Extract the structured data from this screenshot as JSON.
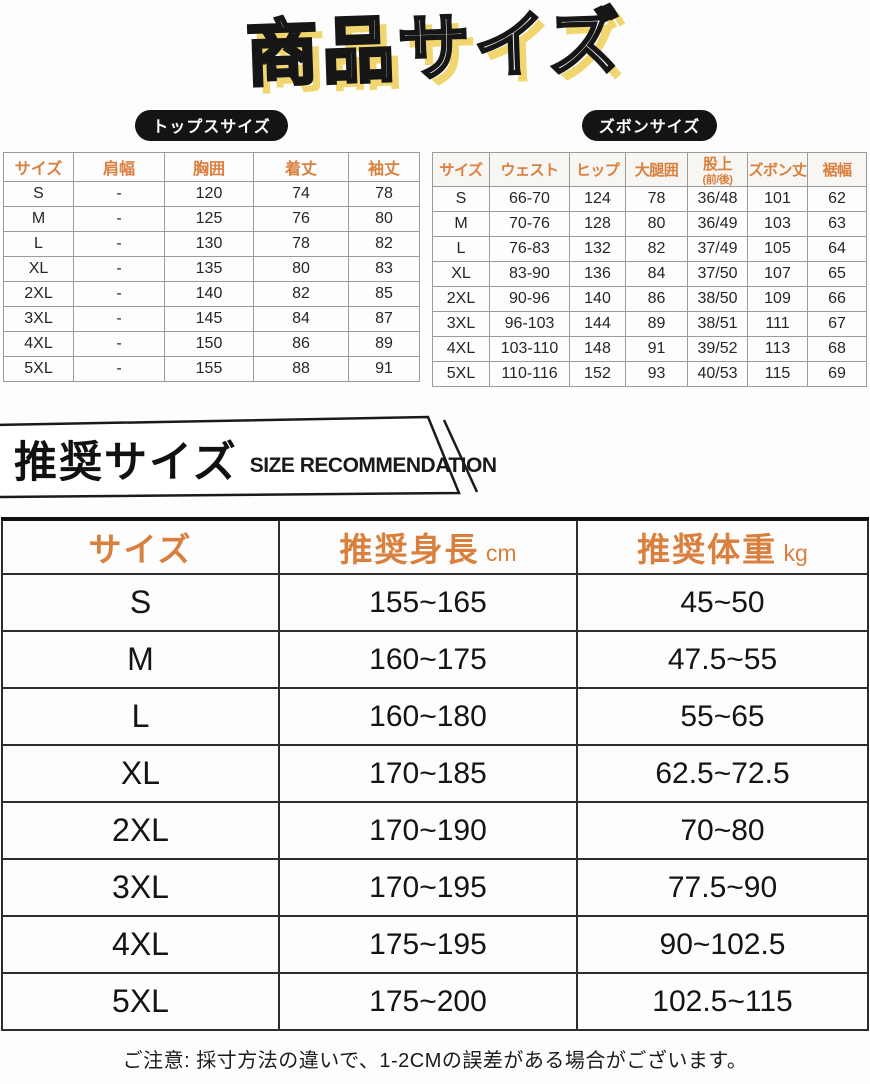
{
  "page": {
    "title": "商品サイズ",
    "note": "ご注意: 採寸方法の違いで、1-2CMの誤差がある場合がございます。"
  },
  "colors": {
    "accent_orange": "#d9803e",
    "title_shadow_yellow": "#f1d66f",
    "badge_black": "#141414",
    "grid_gray": "#9b9b9b",
    "text_dark": "#222222"
  },
  "tops_table": {
    "badge": "トップスサイズ",
    "headers": [
      "サイズ",
      "肩幅",
      "胸囲",
      "着丈",
      "袖丈"
    ],
    "rows": [
      [
        "S",
        "-",
        "120",
        "74",
        "78"
      ],
      [
        "M",
        "-",
        "125",
        "76",
        "80"
      ],
      [
        "L",
        "-",
        "130",
        "78",
        "82"
      ],
      [
        "XL",
        "-",
        "135",
        "80",
        "83"
      ],
      [
        "2XL",
        "-",
        "140",
        "82",
        "85"
      ],
      [
        "3XL",
        "-",
        "145",
        "84",
        "87"
      ],
      [
        "4XL",
        "-",
        "150",
        "86",
        "89"
      ],
      [
        "5XL",
        "-",
        "155",
        "88",
        "91"
      ]
    ]
  },
  "pants_table": {
    "badge": "ズボンサイズ",
    "headers": [
      {
        "label": "サイズ"
      },
      {
        "label": "ウェスト"
      },
      {
        "label": "ヒップ"
      },
      {
        "label": "大腿囲"
      },
      {
        "label": "股上",
        "sub": "(前/後)"
      },
      {
        "label": "ズボン丈"
      },
      {
        "label": "裾幅"
      }
    ],
    "rows": [
      [
        "S",
        "66-70",
        "124",
        "78",
        "36/48",
        "101",
        "62"
      ],
      [
        "M",
        "70-76",
        "128",
        "80",
        "36/49",
        "103",
        "63"
      ],
      [
        "L",
        "76-83",
        "132",
        "82",
        "37/49",
        "105",
        "64"
      ],
      [
        "XL",
        "83-90",
        "136",
        "84",
        "37/50",
        "107",
        "65"
      ],
      [
        "2XL",
        "90-96",
        "140",
        "86",
        "38/50",
        "109",
        "66"
      ],
      [
        "3XL",
        "96-103",
        "144",
        "89",
        "38/51",
        "111",
        "67"
      ],
      [
        "4XL",
        "103-110",
        "148",
        "91",
        "39/52",
        "113",
        "68"
      ],
      [
        "5XL",
        "110-116",
        "152",
        "93",
        "40/53",
        "115",
        "69"
      ]
    ]
  },
  "recommendation": {
    "heading_jp": "推奨サイズ",
    "heading_en": "SIZE RECOMMENDATION",
    "headers": [
      {
        "label": "サイズ",
        "unit": ""
      },
      {
        "label": "推奨身長",
        "unit": "cm"
      },
      {
        "label": "推奨体重",
        "unit": "kg"
      }
    ],
    "rows": [
      [
        "S",
        "155~165",
        "45~50"
      ],
      [
        "M",
        "160~175",
        "47.5~55"
      ],
      [
        "L",
        "160~180",
        "55~65"
      ],
      [
        "XL",
        "170~185",
        "62.5~72.5"
      ],
      [
        "2XL",
        "170~190",
        "70~80"
      ],
      [
        "3XL",
        "170~195",
        "77.5~90"
      ],
      [
        "4XL",
        "175~195",
        "90~102.5"
      ],
      [
        "5XL",
        "175~200",
        "102.5~115"
      ]
    ]
  }
}
